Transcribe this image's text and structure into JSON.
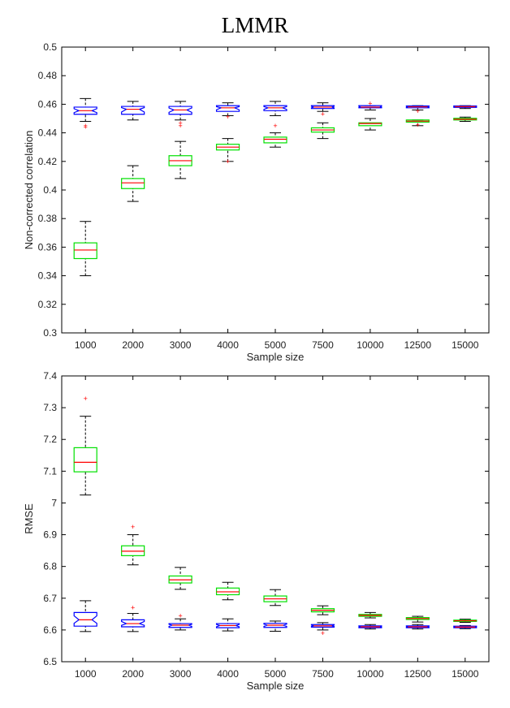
{
  "figure_title": "LMMR",
  "colors": {
    "blue_box": "#0000ff",
    "green_box": "#00e000",
    "median": "#ff0000",
    "outlier": "#ff0000",
    "whisker": "#000000",
    "axes": "#000000"
  },
  "chart_data": [
    {
      "type": "boxplot",
      "title": "",
      "xlabel": "Sample size",
      "ylabel": "Non-corrected correlation",
      "ylim": [
        0.3,
        0.5
      ],
      "yticks": [
        0.3,
        0.32,
        0.34,
        0.36,
        0.38,
        0.4,
        0.42,
        0.44,
        0.46,
        0.48,
        0.5
      ],
      "ytick_labels": [
        "0.3",
        "0.32",
        "0.34",
        "0.36",
        "0.38",
        "0.4",
        "0.42",
        "0.44",
        "0.46",
        "0.48",
        "0.5"
      ],
      "categories": [
        "1000",
        "2000",
        "3000",
        "4000",
        "5000",
        "7500",
        "10000",
        "12500",
        "15000"
      ],
      "series": [
        {
          "name": "blue",
          "color": "#0000ff",
          "notched": true,
          "boxes": [
            {
              "whislo": 0.448,
              "q1": 0.453,
              "med": 0.4555,
              "q3": 0.458,
              "whishi": 0.464,
              "fliers": [
                0.444,
                0.445
              ]
            },
            {
              "whislo": 0.449,
              "q1": 0.453,
              "med": 0.4565,
              "q3": 0.4585,
              "whishi": 0.462,
              "fliers": []
            },
            {
              "whislo": 0.449,
              "q1": 0.453,
              "med": 0.456,
              "q3": 0.4585,
              "whishi": 0.462,
              "fliers": [
                0.445,
                0.447
              ]
            },
            {
              "whislo": 0.452,
              "q1": 0.455,
              "med": 0.4575,
              "q3": 0.459,
              "whishi": 0.461,
              "fliers": [
                0.451
              ]
            },
            {
              "whislo": 0.452,
              "q1": 0.4555,
              "med": 0.4575,
              "q3": 0.459,
              "whishi": 0.462,
              "fliers": []
            },
            {
              "whislo": 0.455,
              "q1": 0.457,
              "med": 0.458,
              "q3": 0.459,
              "whishi": 0.461,
              "fliers": [
                0.453
              ]
            },
            {
              "whislo": 0.456,
              "q1": 0.4575,
              "med": 0.458,
              "q3": 0.459,
              "whishi": 0.459,
              "fliers": [
                0.4605
              ]
            },
            {
              "whislo": 0.456,
              "q1": 0.4575,
              "med": 0.4582,
              "q3": 0.4588,
              "whishi": 0.459,
              "fliers": [
                0.455
              ]
            },
            {
              "whislo": 0.457,
              "q1": 0.4578,
              "med": 0.4583,
              "q3": 0.4588,
              "whishi": 0.459,
              "fliers": []
            }
          ]
        },
        {
          "name": "green",
          "color": "#00e000",
          "notched": false,
          "boxes": [
            {
              "whislo": 0.34,
              "q1": 0.352,
              "med": 0.358,
              "q3": 0.363,
              "whishi": 0.378,
              "fliers": []
            },
            {
              "whislo": 0.392,
              "q1": 0.401,
              "med": 0.405,
              "q3": 0.408,
              "whishi": 0.417,
              "fliers": []
            },
            {
              "whislo": 0.408,
              "q1": 0.417,
              "med": 0.4205,
              "q3": 0.424,
              "whishi": 0.434,
              "fliers": []
            },
            {
              "whislo": 0.42,
              "q1": 0.428,
              "med": 0.43,
              "q3": 0.432,
              "whishi": 0.436,
              "fliers": [
                0.42
              ]
            },
            {
              "whislo": 0.43,
              "q1": 0.433,
              "med": 0.4355,
              "q3": 0.437,
              "whishi": 0.44,
              "fliers": [
                0.445
              ]
            },
            {
              "whislo": 0.436,
              "q1": 0.4405,
              "med": 0.442,
              "q3": 0.4435,
              "whishi": 0.447,
              "fliers": []
            },
            {
              "whislo": 0.442,
              "q1": 0.445,
              "med": 0.4465,
              "q3": 0.447,
              "whishi": 0.45,
              "fliers": []
            },
            {
              "whislo": 0.445,
              "q1": 0.4475,
              "med": 0.4482,
              "q3": 0.449,
              "whishi": 0.449,
              "fliers": [
                0.4455
              ]
            },
            {
              "whislo": 0.448,
              "q1": 0.449,
              "med": 0.4495,
              "q3": 0.4502,
              "whishi": 0.451,
              "fliers": []
            }
          ]
        }
      ]
    },
    {
      "type": "boxplot",
      "title": "",
      "xlabel": "Sample size",
      "ylabel": "RMSE",
      "ylim": [
        6.5,
        7.4
      ],
      "yticks": [
        6.5,
        6.6,
        6.7,
        6.8,
        6.9,
        7,
        7.1,
        7.2,
        7.3,
        7.4
      ],
      "ytick_labels": [
        "6.5",
        "6.6",
        "6.7",
        "6.8",
        "6.9",
        "7",
        "7.1",
        "7.2",
        "7.3",
        "7.4"
      ],
      "categories": [
        "1000",
        "2000",
        "3000",
        "4000",
        "5000",
        "7500",
        "10000",
        "12500",
        "15000"
      ],
      "series": [
        {
          "name": "blue",
          "color": "#0000ff",
          "notched": true,
          "boxes": [
            {
              "whislo": 6.595,
              "q1": 6.612,
              "med": 6.632,
              "q3": 6.655,
              "whishi": 6.692,
              "fliers": []
            },
            {
              "whislo": 6.595,
              "q1": 6.61,
              "med": 6.62,
              "q3": 6.632,
              "whishi": 6.652,
              "fliers": [
                6.67
              ]
            },
            {
              "whislo": 6.6,
              "q1": 6.608,
              "med": 6.615,
              "q3": 6.62,
              "whishi": 6.635,
              "fliers": [
                6.645
              ]
            },
            {
              "whislo": 6.597,
              "q1": 6.607,
              "med": 6.614,
              "q3": 6.62,
              "whishi": 6.635,
              "fliers": []
            },
            {
              "whislo": 6.596,
              "q1": 6.608,
              "med": 6.615,
              "q3": 6.621,
              "whishi": 6.628,
              "fliers": []
            },
            {
              "whislo": 6.6,
              "q1": 6.609,
              "med": 6.613,
              "q3": 6.617,
              "whishi": 6.623,
              "fliers": [
                6.59
              ]
            },
            {
              "whislo": 6.603,
              "q1": 6.607,
              "med": 6.61,
              "q3": 6.613,
              "whishi": 6.617,
              "fliers": []
            },
            {
              "whislo": 6.603,
              "q1": 6.607,
              "med": 6.61,
              "q3": 6.613,
              "whishi": 6.617,
              "fliers": []
            },
            {
              "whislo": 6.604,
              "q1": 6.607,
              "med": 6.609,
              "q3": 6.612,
              "whishi": 6.614,
              "fliers": []
            }
          ]
        },
        {
          "name": "green",
          "color": "#00e000",
          "notched": false,
          "boxes": [
            {
              "whislo": 7.025,
              "q1": 7.098,
              "med": 7.128,
              "q3": 7.174,
              "whishi": 7.273,
              "fliers": [
                7.328
              ]
            },
            {
              "whislo": 6.805,
              "q1": 6.834,
              "med": 6.848,
              "q3": 6.865,
              "whishi": 6.9,
              "fliers": [
                6.925
              ]
            },
            {
              "whislo": 6.728,
              "q1": 6.748,
              "med": 6.758,
              "q3": 6.77,
              "whishi": 6.797,
              "fliers": []
            },
            {
              "whislo": 6.695,
              "q1": 6.711,
              "med": 6.72,
              "q3": 6.732,
              "whishi": 6.75,
              "fliers": []
            },
            {
              "whislo": 6.677,
              "q1": 6.689,
              "med": 6.698,
              "q3": 6.707,
              "whishi": 6.727,
              "fliers": []
            },
            {
              "whislo": 6.648,
              "q1": 6.657,
              "med": 6.662,
              "q3": 6.667,
              "whishi": 6.676,
              "fliers": []
            },
            {
              "whislo": 6.638,
              "q1": 6.643,
              "med": 6.646,
              "q3": 6.649,
              "whishi": 6.655,
              "fliers": []
            },
            {
              "whislo": 6.625,
              "q1": 6.633,
              "med": 6.636,
              "q3": 6.639,
              "whishi": 6.643,
              "fliers": []
            },
            {
              "whislo": 6.624,
              "q1": 6.627,
              "med": 6.629,
              "q3": 6.631,
              "whishi": 6.634,
              "fliers": []
            }
          ]
        }
      ]
    }
  ]
}
